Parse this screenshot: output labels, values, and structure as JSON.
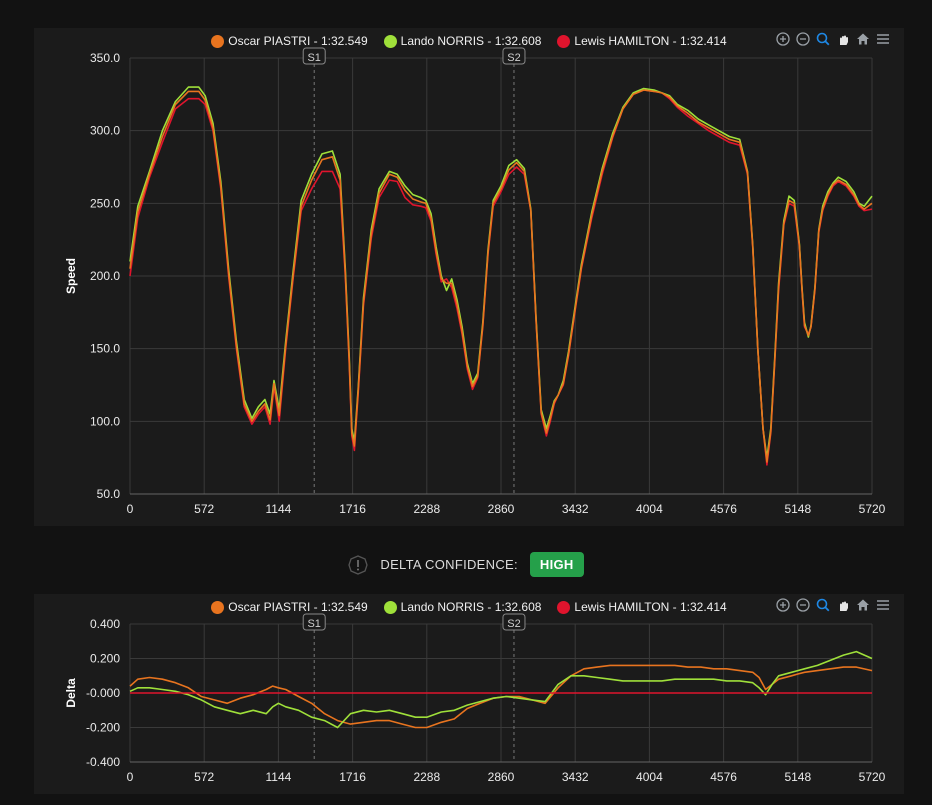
{
  "legend": [
    {
      "label": "Oscar PIASTRI - 1:32.549",
      "color": "#e8741f"
    },
    {
      "label": "Lando NORRIS - 1:32.608",
      "color": "#9fe03a"
    },
    {
      "label": "Lewis HAMILTON - 1:32.414",
      "color": "#e0142d"
    }
  ],
  "confidence": {
    "label": "DELTA CONFIDENCE:",
    "value": "HIGH"
  },
  "toolbar": [
    "zoom-in-icon",
    "zoom-out-icon",
    "zoom-select-icon",
    "pan-hand-icon",
    "home-icon",
    "menu-icon"
  ],
  "chart_data": [
    {
      "type": "line",
      "title": "",
      "xlabel": "",
      "ylabel": "Speed",
      "xlim": [
        0,
        5720
      ],
      "ylim": [
        50,
        350
      ],
      "x_ticks": [
        "0",
        "572",
        "1144",
        "1716",
        "2288",
        "2860",
        "3432",
        "4004",
        "4576",
        "5148",
        "5720"
      ],
      "y_ticks": [
        "50.0",
        "100.0",
        "150.0",
        "200.0",
        "250.0",
        "300.0",
        "350.0"
      ],
      "sectors": [
        {
          "label": "S1",
          "x": 1420
        },
        {
          "label": "S2",
          "x": 2960
        }
      ],
      "series": [
        {
          "name": "Lewis HAMILTON",
          "color": "#e0142d",
          "x": [
            0,
            60,
            150,
            250,
            350,
            450,
            530,
            580,
            640,
            700,
            760,
            820,
            880,
            940,
            990,
            1040,
            1080,
            1110,
            1150,
            1200,
            1260,
            1320,
            1400,
            1480,
            1560,
            1620,
            1660,
            1690,
            1710,
            1730,
            1760,
            1800,
            1860,
            1920,
            2000,
            2060,
            2120,
            2180,
            2240,
            2280,
            2320,
            2360,
            2400,
            2440,
            2480,
            2520,
            2560,
            2600,
            2640,
            2680,
            2720,
            2760,
            2800,
            2860,
            2920,
            2980,
            3040,
            3090,
            3130,
            3170,
            3210,
            3240,
            3270,
            3300,
            3340,
            3380,
            3430,
            3480,
            3560,
            3640,
            3720,
            3800,
            3880,
            3960,
            4040,
            4100,
            4160,
            4220,
            4300,
            4380,
            4460,
            4540,
            4620,
            4700,
            4760,
            4800,
            4840,
            4880,
            4910,
            4940,
            4970,
            5000,
            5040,
            5080,
            5120,
            5160,
            5180,
            5200,
            5230,
            5250,
            5280,
            5310,
            5340,
            5380,
            5420,
            5460,
            5520,
            5580,
            5620,
            5660,
            5720
          ],
          "y": [
            200,
            240,
            268,
            292,
            315,
            322,
            322,
            318,
            300,
            260,
            200,
            150,
            110,
            98,
            105,
            110,
            98,
            124,
            100,
            150,
            200,
            245,
            260,
            272,
            272,
            260,
            200,
            140,
            90,
            80,
            120,
            180,
            226,
            254,
            266,
            265,
            254,
            249,
            248,
            247,
            238,
            215,
            196,
            198,
            192,
            178,
            160,
            136,
            122,
            130,
            165,
            215,
            248,
            258,
            270,
            275,
            270,
            245,
            170,
            105,
            90,
            100,
            112,
            118,
            125,
            145,
            175,
            205,
            240,
            270,
            295,
            315,
            325,
            328,
            327,
            326,
            322,
            316,
            310,
            305,
            300,
            296,
            292,
            290,
            270,
            220,
            150,
            95,
            70,
            92,
            140,
            190,
            235,
            250,
            248,
            220,
            190,
            165,
            160,
            165,
            190,
            230,
            245,
            255,
            262,
            265,
            262,
            255,
            248,
            245,
            246
          ]
        },
        {
          "name": "Lando NORRIS",
          "color": "#9fe03a",
          "x": [
            0,
            60,
            150,
            250,
            350,
            450,
            530,
            580,
            640,
            700,
            760,
            820,
            880,
            940,
            990,
            1040,
            1080,
            1110,
            1150,
            1200,
            1260,
            1320,
            1400,
            1480,
            1560,
            1620,
            1660,
            1690,
            1710,
            1730,
            1760,
            1800,
            1860,
            1920,
            2000,
            2060,
            2120,
            2180,
            2240,
            2280,
            2320,
            2360,
            2400,
            2440,
            2480,
            2520,
            2560,
            2600,
            2640,
            2680,
            2720,
            2760,
            2800,
            2860,
            2920,
            2980,
            3040,
            3090,
            3130,
            3170,
            3210,
            3240,
            3270,
            3300,
            3340,
            3380,
            3430,
            3480,
            3560,
            3640,
            3720,
            3800,
            3880,
            3960,
            4040,
            4100,
            4160,
            4220,
            4300,
            4380,
            4460,
            4540,
            4620,
            4700,
            4760,
            4800,
            4840,
            4880,
            4910,
            4940,
            4970,
            5000,
            5040,
            5080,
            5120,
            5160,
            5180,
            5200,
            5230,
            5250,
            5280,
            5310,
            5340,
            5380,
            5420,
            5460,
            5520,
            5580,
            5620,
            5660,
            5720
          ],
          "y": [
            210,
            248,
            272,
            300,
            320,
            330,
            330,
            324,
            305,
            265,
            205,
            155,
            115,
            102,
            110,
            115,
            105,
            128,
            108,
            155,
            205,
            252,
            270,
            284,
            286,
            270,
            205,
            145,
            95,
            86,
            124,
            185,
            232,
            260,
            272,
            270,
            262,
            256,
            254,
            252,
            243,
            220,
            200,
            190,
            198,
            184,
            165,
            140,
            126,
            133,
            168,
            218,
            252,
            262,
            276,
            280,
            274,
            246,
            172,
            108,
            95,
            104,
            114,
            118,
            128,
            148,
            178,
            208,
            244,
            274,
            298,
            316,
            326,
            329,
            328,
            326,
            324,
            318,
            314,
            308,
            304,
            300,
            296,
            294,
            272,
            222,
            150,
            95,
            75,
            95,
            143,
            195,
            238,
            255,
            252,
            222,
            192,
            168,
            158,
            166,
            192,
            232,
            248,
            258,
            264,
            268,
            265,
            258,
            250,
            248,
            255
          ]
        },
        {
          "name": "Oscar PIASTRI",
          "color": "#e8741f",
          "x": [
            0,
            60,
            150,
            250,
            350,
            450,
            530,
            580,
            640,
            700,
            760,
            820,
            880,
            940,
            990,
            1040,
            1080,
            1110,
            1150,
            1200,
            1260,
            1320,
            1400,
            1480,
            1560,
            1620,
            1660,
            1690,
            1710,
            1730,
            1760,
            1800,
            1860,
            1920,
            2000,
            2060,
            2120,
            2180,
            2240,
            2280,
            2320,
            2360,
            2400,
            2440,
            2480,
            2520,
            2560,
            2600,
            2640,
            2680,
            2720,
            2760,
            2800,
            2860,
            2920,
            2980,
            3040,
            3090,
            3130,
            3170,
            3210,
            3240,
            3270,
            3300,
            3340,
            3380,
            3430,
            3480,
            3560,
            3640,
            3720,
            3800,
            3880,
            3960,
            4040,
            4100,
            4160,
            4220,
            4300,
            4380,
            4460,
            4540,
            4620,
            4700,
            4760,
            4800,
            4840,
            4880,
            4910,
            4940,
            4970,
            5000,
            5040,
            5080,
            5120,
            5160,
            5180,
            5200,
            5230,
            5250,
            5280,
            5310,
            5340,
            5380,
            5420,
            5460,
            5520,
            5580,
            5620,
            5660,
            5720
          ],
          "y": [
            205,
            244,
            270,
            296,
            318,
            327,
            327,
            321,
            302,
            262,
            202,
            152,
            112,
            100,
            107,
            112,
            101,
            126,
            104,
            152,
            202,
            248,
            266,
            280,
            282,
            266,
            202,
            142,
            92,
            83,
            122,
            182,
            229,
            257,
            270,
            268,
            259,
            253,
            251,
            250,
            240,
            217,
            198,
            195,
            195,
            181,
            162,
            138,
            124,
            131,
            166,
            216,
            250,
            260,
            273,
            278,
            272,
            245,
            170,
            106,
            92,
            102,
            113,
            118,
            126,
            146,
            176,
            206,
            242,
            272,
            296,
            315,
            325,
            328,
            327,
            326,
            323,
            317,
            312,
            306,
            302,
            298,
            294,
            292,
            271,
            221,
            150,
            95,
            72,
            93,
            141,
            192,
            236,
            252,
            250,
            221,
            191,
            166,
            159,
            165,
            191,
            231,
            246,
            256,
            263,
            266,
            263,
            256,
            249,
            246,
            250
          ]
        }
      ]
    },
    {
      "type": "line",
      "title": "",
      "xlabel": "",
      "ylabel": "Delta",
      "xlim": [
        0,
        5720
      ],
      "ylim": [
        -0.4,
        0.4
      ],
      "x_ticks": [
        "0",
        "572",
        "1144",
        "1716",
        "2288",
        "2860",
        "3432",
        "4004",
        "4576",
        "5148",
        "5720"
      ],
      "y_ticks": [
        "-0.400",
        "-0.200",
        "-0.000",
        "0.200",
        "0.400"
      ],
      "sectors": [
        {
          "label": "S1",
          "x": 1420
        },
        {
          "label": "S2",
          "x": 2960
        }
      ],
      "series": [
        {
          "name": "Oscar PIASTRI",
          "color": "#e8741f",
          "x": [
            0,
            60,
            150,
            250,
            350,
            450,
            550,
            650,
            750,
            850,
            950,
            1050,
            1100,
            1144,
            1200,
            1300,
            1400,
            1500,
            1600,
            1700,
            1800,
            1900,
            2000,
            2100,
            2200,
            2288,
            2400,
            2500,
            2600,
            2700,
            2800,
            2900,
            3000,
            3100,
            3200,
            3300,
            3400,
            3500,
            3600,
            3700,
            3800,
            3900,
            4004,
            4100,
            4200,
            4300,
            4400,
            4500,
            4600,
            4700,
            4800,
            4850,
            4900,
            4950,
            5000,
            5100,
            5148,
            5200,
            5300,
            5400,
            5500,
            5600,
            5720
          ],
          "y": [
            0.04,
            0.08,
            0.09,
            0.08,
            0.06,
            0.03,
            -0.02,
            -0.04,
            -0.06,
            -0.03,
            -0.01,
            0.02,
            0.04,
            0.03,
            0.02,
            -0.02,
            -0.06,
            -0.12,
            -0.16,
            -0.18,
            -0.17,
            -0.16,
            -0.16,
            -0.18,
            -0.2,
            -0.2,
            -0.17,
            -0.15,
            -0.09,
            -0.06,
            -0.03,
            -0.02,
            -0.02,
            -0.04,
            -0.06,
            0.03,
            0.1,
            0.14,
            0.15,
            0.16,
            0.16,
            0.16,
            0.16,
            0.16,
            0.16,
            0.15,
            0.15,
            0.14,
            0.14,
            0.13,
            0.12,
            0.09,
            0.02,
            0.05,
            0.08,
            0.1,
            0.11,
            0.12,
            0.13,
            0.14,
            0.15,
            0.15,
            0.13
          ]
        },
        {
          "name": "Lando NORRIS",
          "color": "#9fe03a",
          "x": [
            0,
            60,
            150,
            250,
            350,
            450,
            550,
            650,
            750,
            850,
            950,
            1050,
            1100,
            1144,
            1200,
            1300,
            1400,
            1500,
            1600,
            1700,
            1800,
            1900,
            2000,
            2100,
            2200,
            2288,
            2400,
            2500,
            2600,
            2700,
            2800,
            2900,
            3000,
            3100,
            3200,
            3300,
            3400,
            3500,
            3600,
            3700,
            3800,
            3900,
            4004,
            4100,
            4200,
            4300,
            4400,
            4500,
            4600,
            4700,
            4800,
            4850,
            4900,
            4950,
            5000,
            5100,
            5148,
            5200,
            5300,
            5400,
            5500,
            5600,
            5720
          ],
          "y": [
            0.01,
            0.03,
            0.03,
            0.02,
            0.01,
            -0.01,
            -0.04,
            -0.08,
            -0.1,
            -0.12,
            -0.1,
            -0.12,
            -0.08,
            -0.06,
            -0.08,
            -0.1,
            -0.14,
            -0.16,
            -0.2,
            -0.12,
            -0.1,
            -0.11,
            -0.1,
            -0.12,
            -0.14,
            -0.14,
            -0.11,
            -0.1,
            -0.07,
            -0.05,
            -0.03,
            -0.02,
            -0.03,
            -0.04,
            -0.05,
            0.05,
            0.1,
            0.1,
            0.09,
            0.08,
            0.07,
            0.07,
            0.07,
            0.07,
            0.08,
            0.08,
            0.08,
            0.08,
            0.07,
            0.07,
            0.06,
            0.03,
            -0.01,
            0.05,
            0.1,
            0.12,
            0.13,
            0.14,
            0.16,
            0.19,
            0.22,
            0.24,
            0.2
          ]
        },
        {
          "name": "Lewis HAMILTON",
          "color": "#e0142d",
          "x": [
            0,
            5720
          ],
          "y": [
            0,
            0
          ]
        }
      ]
    }
  ]
}
